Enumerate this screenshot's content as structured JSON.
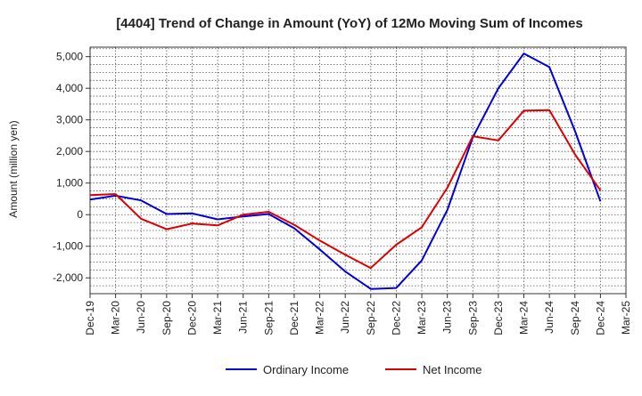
{
  "chart_data": {
    "type": "line",
    "title": "[4404]  Trend of Change in Amount (YoY) of 12Mo Moving Sum of Incomes",
    "xlabel": "",
    "ylabel": "Amount (million yen)",
    "ylim": [
      -2500,
      5300
    ],
    "yticks": [
      -2000,
      -1000,
      0,
      1000,
      2000,
      3000,
      4000,
      5000
    ],
    "ytick_labels": [
      "-2,000",
      "-1,000",
      "0",
      "1,000",
      "2,000",
      "3,000",
      "4,000",
      "5,000"
    ],
    "categories": [
      "Dec-19",
      "Mar-20",
      "Jun-20",
      "Sep-20",
      "Dec-20",
      "Mar-21",
      "Jun-21",
      "Sep-21",
      "Dec-21",
      "Mar-22",
      "Jun-22",
      "Sep-22",
      "Dec-22",
      "Mar-23",
      "Jun-23",
      "Sep-23",
      "Dec-23",
      "Mar-24",
      "Jun-24",
      "Sep-24",
      "Dec-24",
      "Mar-25"
    ],
    "grid": true,
    "legend_position": "bottom",
    "series": [
      {
        "name": "Ordinary Income",
        "color": "#0000dd",
        "values": [
          480,
          600,
          450,
          20,
          40,
          -150,
          -60,
          20,
          -430,
          -1100,
          -1800,
          -2350,
          -2320,
          -1450,
          150,
          2450,
          4000,
          5100,
          4670,
          2650,
          420,
          null
        ]
      },
      {
        "name": "Net Income",
        "color": "#dd0000",
        "values": [
          620,
          650,
          -130,
          -460,
          -280,
          -340,
          0,
          90,
          -320,
          -820,
          -1270,
          -1690,
          -950,
          -400,
          850,
          2480,
          2350,
          3290,
          3310,
          1910,
          770,
          null
        ]
      }
    ]
  }
}
